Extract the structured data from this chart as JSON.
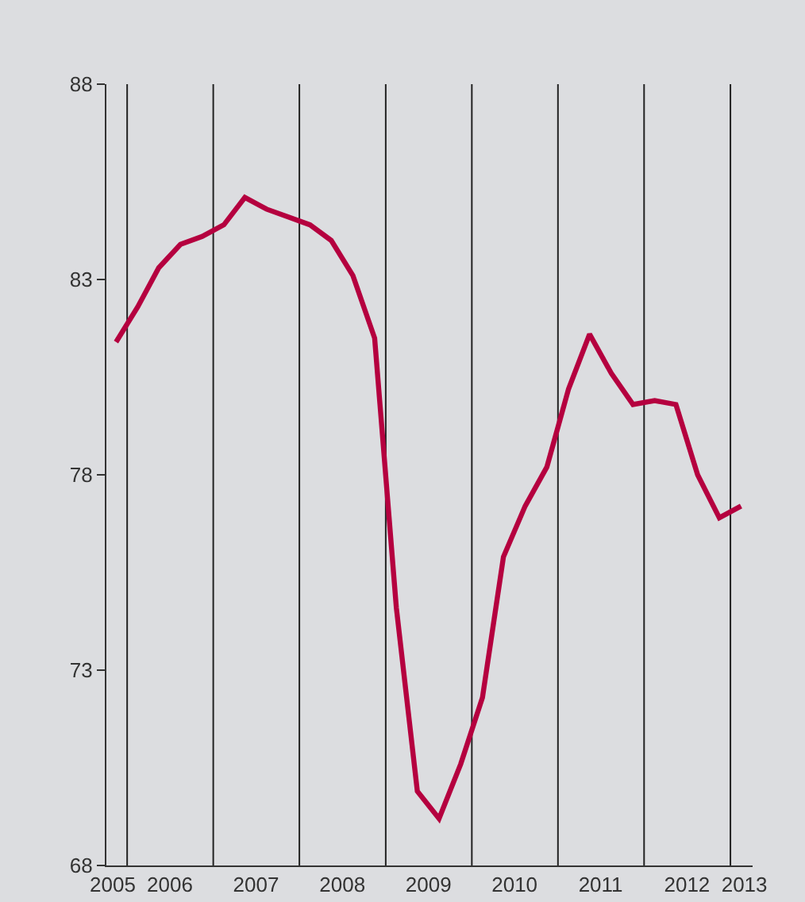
{
  "chart_data": {
    "type": "line",
    "x": [
      "2005-11-15",
      "2006-02-15",
      "2006-05-15",
      "2006-08-15",
      "2006-11-15",
      "2007-02-15",
      "2007-05-15",
      "2007-08-15",
      "2007-11-15",
      "2008-02-15",
      "2008-05-15",
      "2008-08-15",
      "2008-11-15",
      "2009-02-15",
      "2009-05-15",
      "2009-08-15",
      "2009-11-15",
      "2010-02-15",
      "2010-05-15",
      "2010-08-15",
      "2010-11-15",
      "2011-02-15",
      "2011-05-15",
      "2011-08-15",
      "2011-11-15",
      "2012-02-15",
      "2012-05-15",
      "2012-08-15",
      "2012-11-15",
      "2013-02-15"
    ],
    "series": [
      {
        "color": "#b5003f",
        "values": [
          81.4,
          82.3,
          83.3,
          83.9,
          84.1,
          84.4,
          85.1,
          84.8,
          84.6,
          84.4,
          84.0,
          83.1,
          81.5,
          74.6,
          69.9,
          69.2,
          70.6,
          72.3,
          75.9,
          77.2,
          78.2,
          80.2,
          81.6,
          80.6,
          79.8,
          79.9,
          79.8,
          78.0,
          76.9,
          77.2
        ]
      }
    ],
    "xlim": [
      "2005-10-05",
      "2013-04-05"
    ],
    "xticks": [
      {
        "value": "2005-11",
        "label": "2005"
      },
      {
        "value": "2006-07",
        "label": "2006"
      },
      {
        "value": "2007-07",
        "label": "2007"
      },
      {
        "value": "2008-07",
        "label": "2008"
      },
      {
        "value": "2009-07",
        "label": "2009"
      },
      {
        "value": "2010-07",
        "label": "2010"
      },
      {
        "value": "2011-07",
        "label": "2011"
      },
      {
        "value": "2012-07",
        "label": "2012"
      },
      {
        "value": "2013-03",
        "label": "2013"
      }
    ],
    "ylim": [
      68,
      88
    ],
    "yticks": [
      68,
      73,
      78,
      83,
      88
    ],
    "ref_lines": [
      {
        "axis": "x",
        "value": "2006-01-01",
        "color": "#222222"
      },
      {
        "axis": "x",
        "value": "2007-01-01",
        "color": "#222222"
      },
      {
        "axis": "x",
        "value": "2008-01-01",
        "color": "#222222"
      },
      {
        "axis": "x",
        "value": "2009-01-01",
        "color": "#222222"
      },
      {
        "axis": "x",
        "value": "2010-01-01",
        "color": "#222222"
      },
      {
        "axis": "x",
        "value": "2011-01-01",
        "color": "#222222"
      },
      {
        "axis": "x",
        "value": "2012-01-01",
        "color": "#222222"
      },
      {
        "axis": "x",
        "value": "2013-01-01",
        "color": "#222222"
      }
    ],
    "grid": false,
    "marker": "none",
    "line_style": "solid"
  }
}
